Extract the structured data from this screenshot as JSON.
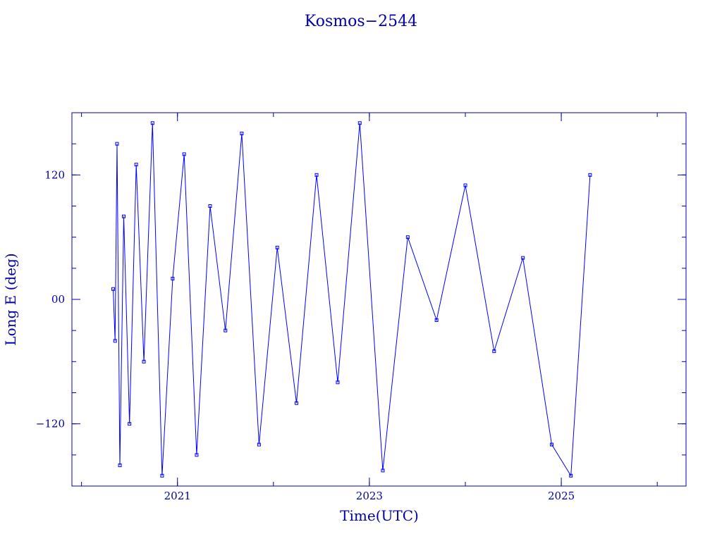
{
  "chart_data": {
    "type": "line",
    "title": "Kosmos−2544",
    "xlabel": "Time(UTC)",
    "ylabel": "Long E (deg)",
    "xlim": [
      2019.9,
      2026.3
    ],
    "ylim": [
      -180,
      180
    ],
    "x_major_ticks": [
      2021,
      2023,
      2025
    ],
    "x_minor_ticks": [
      2020,
      2021,
      2022,
      2023,
      2024,
      2025,
      2026
    ],
    "x_tick_labels": [
      "2021",
      "2023",
      "2025"
    ],
    "y_major_ticks": [
      -120,
      0,
      120
    ],
    "y_minor_step": 30,
    "y_tick_labels": [
      "−120",
      "00",
      "120"
    ],
    "grid": false,
    "colors": {
      "series": "#0000ff",
      "frame": "#0000aa"
    },
    "series": [
      {
        "x": [
          2020.33,
          2020.35,
          2020.37,
          2020.4,
          2020.44,
          2020.5,
          2020.57,
          2020.65,
          2020.74,
          2020.84,
          2020.95,
          2021.07,
          2021.2,
          2021.34,
          2021.5,
          2021.67,
          2021.85,
          2022.04,
          2022.24,
          2022.45,
          2022.67,
          2022.9,
          2023.14,
          2023.4,
          2023.7,
          2024.0,
          2024.3,
          2024.6,
          2024.9,
          2025.1,
          2025.3
        ],
        "y": [
          10,
          -40,
          150,
          -160,
          80,
          -120,
          130,
          -60,
          170,
          -170,
          20,
          140,
          -150,
          90,
          -30,
          160,
          -140,
          50,
          -100,
          120,
          -80,
          170,
          -165,
          60,
          -20,
          110,
          -50,
          40,
          -140,
          -170,
          120
        ]
      }
    ]
  }
}
